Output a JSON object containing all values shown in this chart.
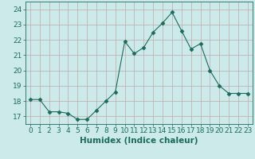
{
  "x": [
    0,
    1,
    2,
    3,
    4,
    5,
    6,
    7,
    8,
    9,
    10,
    11,
    12,
    13,
    14,
    15,
    16,
    17,
    18,
    19,
    20,
    21,
    22,
    23
  ],
  "y": [
    18.1,
    18.1,
    17.3,
    17.3,
    17.2,
    16.8,
    16.8,
    17.4,
    18.0,
    18.6,
    21.9,
    21.1,
    21.5,
    22.5,
    23.1,
    23.8,
    22.6,
    21.4,
    21.75,
    20.0,
    19.0,
    18.5,
    18.5,
    18.5
  ],
  "line_color": "#1a6b5a",
  "marker": "D",
  "marker_size": 2.5,
  "bg_color": "#cceaea",
  "grid_color": "#c0a8a8",
  "xlabel": "Humidex (Indice chaleur)",
  "ylim": [
    16.5,
    24.5
  ],
  "xlim": [
    -0.5,
    23.5
  ],
  "yticks": [
    17,
    18,
    19,
    20,
    21,
    22,
    23,
    24
  ],
  "xticks": [
    0,
    1,
    2,
    3,
    4,
    5,
    6,
    7,
    8,
    9,
    10,
    11,
    12,
    13,
    14,
    15,
    16,
    17,
    18,
    19,
    20,
    21,
    22,
    23
  ],
  "xlabel_fontsize": 7.5,
  "tick_fontsize": 6.5,
  "label_color": "#1a6b5a"
}
